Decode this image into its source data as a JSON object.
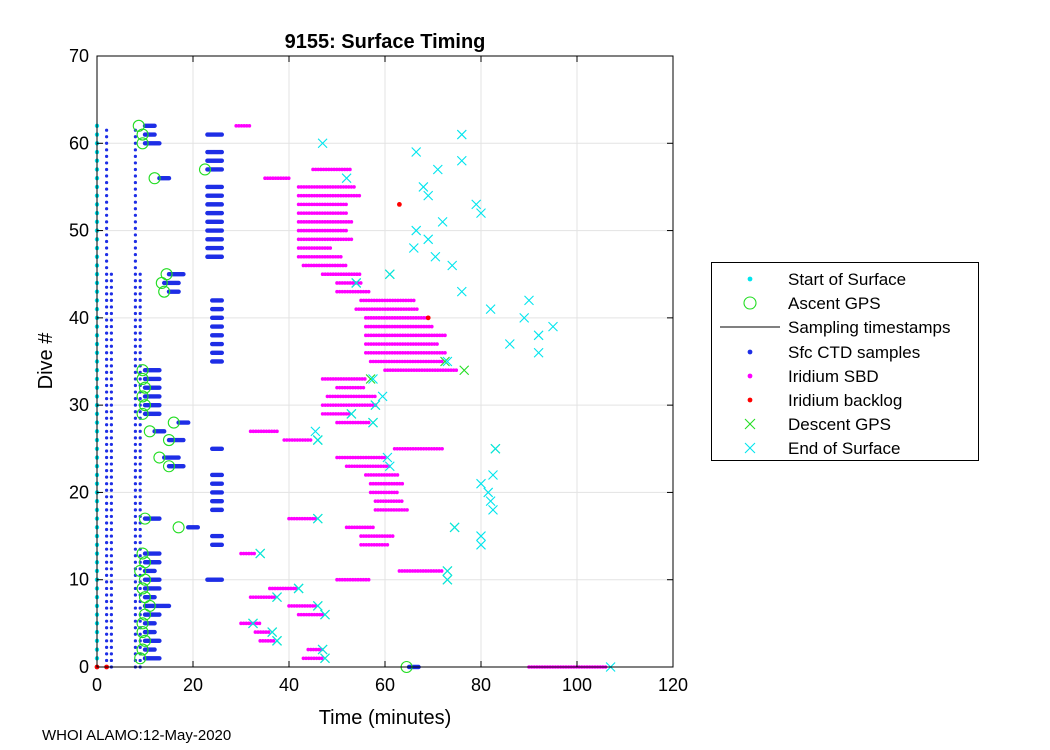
{
  "chart_data": {
    "type": "scatter",
    "title": "9155: Surface Timing",
    "xlabel": "Time (minutes)",
    "ylabel": "Dive #",
    "xlim": [
      0,
      120
    ],
    "ylim": [
      0,
      70
    ],
    "xticks": [
      0,
      20,
      40,
      60,
      80,
      100,
      120
    ],
    "yticks": [
      0,
      10,
      20,
      30,
      40,
      50,
      60,
      70
    ],
    "grid": true,
    "legend_position": "right-outside",
    "series": [
      {
        "name": "Start of Surface",
        "marker": "dot",
        "color": "#00e5ee",
        "points": [
          [
            0,
            0
          ],
          [
            0,
            1
          ],
          [
            0,
            2
          ],
          [
            0,
            3
          ],
          [
            0,
            4
          ],
          [
            0,
            5
          ],
          [
            0,
            6
          ],
          [
            0,
            7
          ],
          [
            0,
            8
          ],
          [
            0,
            9
          ],
          [
            0,
            10
          ],
          [
            0,
            11
          ],
          [
            0,
            12
          ],
          [
            0,
            13
          ],
          [
            0,
            14
          ],
          [
            0,
            15
          ],
          [
            0,
            16
          ],
          [
            0,
            17
          ],
          [
            0,
            18
          ],
          [
            0,
            19
          ],
          [
            0,
            20
          ],
          [
            0,
            21
          ],
          [
            0,
            22
          ],
          [
            0,
            23
          ],
          [
            0,
            24
          ],
          [
            0,
            25
          ],
          [
            0,
            26
          ],
          [
            0,
            27
          ],
          [
            0,
            28
          ],
          [
            0,
            29
          ],
          [
            0,
            30
          ],
          [
            0,
            31
          ],
          [
            0,
            32
          ],
          [
            0,
            33
          ],
          [
            0,
            34
          ],
          [
            0,
            35
          ],
          [
            0,
            36
          ],
          [
            0,
            37
          ],
          [
            0,
            38
          ],
          [
            0,
            39
          ],
          [
            0,
            40
          ],
          [
            0,
            41
          ],
          [
            0,
            42
          ],
          [
            0,
            43
          ],
          [
            0,
            44
          ],
          [
            0,
            45
          ],
          [
            0,
            46
          ],
          [
            0,
            47
          ],
          [
            0,
            48
          ],
          [
            0,
            49
          ],
          [
            0,
            50
          ],
          [
            0,
            51
          ],
          [
            0,
            52
          ],
          [
            0,
            53
          ],
          [
            0,
            54
          ],
          [
            0,
            55
          ],
          [
            0,
            56
          ],
          [
            0,
            57
          ],
          [
            0,
            58
          ],
          [
            0,
            59
          ],
          [
            0,
            60
          ],
          [
            0,
            61
          ],
          [
            0,
            62
          ]
        ]
      },
      {
        "name": "Ascent GPS",
        "marker": "circle",
        "color": "#22dd22",
        "points": [
          [
            9,
            1
          ],
          [
            9.5,
            2
          ],
          [
            10,
            3
          ],
          [
            9.5,
            4
          ],
          [
            9.5,
            5
          ],
          [
            10,
            6
          ],
          [
            11,
            7
          ],
          [
            10,
            8
          ],
          [
            9.5,
            9
          ],
          [
            10,
            10
          ],
          [
            9,
            11
          ],
          [
            10,
            12
          ],
          [
            9.5,
            13
          ],
          [
            17,
            16
          ],
          [
            10,
            17
          ],
          [
            15,
            23
          ],
          [
            13,
            24
          ],
          [
            15,
            26
          ],
          [
            11,
            27
          ],
          [
            16,
            28
          ],
          [
            9.5,
            29
          ],
          [
            10,
            30
          ],
          [
            9.5,
            31
          ],
          [
            10,
            32
          ],
          [
            9.5,
            33
          ],
          [
            9.5,
            34
          ],
          [
            14,
            43
          ],
          [
            13.5,
            44
          ],
          [
            14.5,
            45
          ],
          [
            12,
            56
          ],
          [
            22.5,
            57
          ],
          [
            9.5,
            60
          ],
          [
            9.5,
            61
          ],
          [
            8.7,
            62
          ],
          [
            64.5,
            0
          ]
        ]
      },
      {
        "name": "Sampling timestamps",
        "marker": "line",
        "color": "#000000",
        "points": []
      },
      {
        "name": "Sfc CTD samples",
        "marker": "dot",
        "color": "#1e2ee6",
        "points": []
      },
      {
        "name": "Iridium SBD",
        "marker": "dot",
        "color": "#ff00ff",
        "points": []
      },
      {
        "name": "Iridium backlog",
        "marker": "dot",
        "color": "#ff0000",
        "points": [
          [
            0,
            0
          ],
          [
            2,
            0
          ],
          [
            63,
            53
          ],
          [
            69,
            40
          ]
        ]
      },
      {
        "name": "Descent GPS",
        "marker": "x",
        "color": "#22dd22",
        "points": [
          [
            47.5,
            1
          ],
          [
            47,
            2
          ],
          [
            37.5,
            3
          ],
          [
            36.5,
            4
          ],
          [
            32.5,
            5
          ],
          [
            47.5,
            6
          ],
          [
            46,
            7
          ],
          [
            37.5,
            8
          ],
          [
            42,
            9
          ],
          [
            73,
            10
          ],
          [
            73,
            11
          ],
          [
            34,
            13
          ],
          [
            74.5,
            16
          ],
          [
            46,
            17
          ],
          [
            83,
            25
          ],
          [
            46,
            26
          ],
          [
            57.5,
            28
          ],
          [
            53,
            29
          ],
          [
            58,
            30
          ],
          [
            57,
            33
          ],
          [
            72.5,
            35
          ],
          [
            76.5,
            34
          ],
          [
            61,
            45
          ],
          [
            54,
            44
          ]
        ]
      },
      {
        "name": "End of Surface",
        "marker": "x",
        "color": "#00e5ee",
        "points": [
          [
            47.5,
            1
          ],
          [
            47,
            2
          ],
          [
            37.5,
            3
          ],
          [
            36.5,
            4
          ],
          [
            32.5,
            5
          ],
          [
            47.5,
            6
          ],
          [
            46,
            7
          ],
          [
            37.5,
            8
          ],
          [
            42,
            9
          ],
          [
            73,
            10
          ],
          [
            73,
            11
          ],
          [
            34,
            13
          ],
          [
            80,
            14
          ],
          [
            80,
            15
          ],
          [
            74.5,
            16
          ],
          [
            46,
            17
          ],
          [
            82.5,
            18
          ],
          [
            82,
            19
          ],
          [
            81.5,
            20
          ],
          [
            80,
            21
          ],
          [
            82.5,
            22
          ],
          [
            61,
            23
          ],
          [
            60.5,
            24
          ],
          [
            83,
            25
          ],
          [
            46,
            26
          ],
          [
            45.5,
            27
          ],
          [
            57.5,
            28
          ],
          [
            53,
            29
          ],
          [
            58,
            30
          ],
          [
            59.5,
            31
          ],
          [
            57.5,
            33
          ],
          [
            73,
            35
          ],
          [
            92,
            36
          ],
          [
            86,
            37
          ],
          [
            92,
            38
          ],
          [
            95,
            39
          ],
          [
            89,
            40
          ],
          [
            82,
            41
          ],
          [
            90,
            42
          ],
          [
            76,
            43
          ],
          [
            54,
            44
          ],
          [
            61,
            45
          ],
          [
            74,
            46
          ],
          [
            70.5,
            47
          ],
          [
            66,
            48
          ],
          [
            69,
            49
          ],
          [
            66.5,
            50
          ],
          [
            72,
            51
          ],
          [
            80,
            52
          ],
          [
            79,
            53
          ],
          [
            69,
            54
          ],
          [
            68,
            55
          ],
          [
            52,
            56
          ],
          [
            71,
            57
          ],
          [
            76,
            58
          ],
          [
            66.5,
            59
          ],
          [
            47,
            60
          ],
          [
            76,
            61
          ],
          [
            107,
            0
          ]
        ]
      }
    ],
    "sampling_columns_x": [
      2,
      3,
      8,
      9
    ],
    "notes": "Dense scatter of per-dive surface sample clusters; values estimated from gridlines."
  },
  "legend": {
    "items": [
      {
        "label": "Start of Surface"
      },
      {
        "label": "Ascent GPS"
      },
      {
        "label": "Sampling timestamps"
      },
      {
        "label": "Sfc CTD samples"
      },
      {
        "label": "Iridium SBD"
      },
      {
        "label": "Iridium backlog"
      },
      {
        "label": "Descent GPS"
      },
      {
        "label": "End of Surface"
      }
    ]
  },
  "footer": "WHOI ALAMO:12-May-2020",
  "colors": {
    "cyan": "#00e5ee",
    "green": "#22dd22",
    "blue": "#1e2ee6",
    "magenta": "#ff00ff",
    "red": "#ff0000",
    "grid": "#e3e3e3"
  },
  "ranges": {
    "ctd": [
      [
        10,
        13,
        1
      ],
      [
        10,
        12,
        2
      ],
      [
        10,
        13,
        3
      ],
      [
        10,
        12,
        4
      ],
      [
        10,
        12,
        5
      ],
      [
        10,
        13,
        6
      ],
      [
        10,
        15,
        7
      ],
      [
        10,
        12,
        8
      ],
      [
        10,
        13,
        9
      ],
      [
        10,
        13,
        10
      ],
      [
        10,
        12,
        11
      ],
      [
        10,
        13,
        12
      ],
      [
        10,
        13,
        13
      ],
      [
        19,
        21,
        16
      ],
      [
        10,
        13,
        17
      ],
      [
        15,
        18,
        23
      ],
      [
        14,
        17,
        24
      ],
      [
        15,
        18,
        26
      ],
      [
        12,
        14,
        27
      ],
      [
        17,
        19,
        28
      ],
      [
        10,
        13,
        29
      ],
      [
        10,
        13,
        30
      ],
      [
        10,
        13,
        31
      ],
      [
        10,
        13,
        32
      ],
      [
        10,
        13,
        33
      ],
      [
        10,
        13,
        34
      ],
      [
        15,
        17,
        43
      ],
      [
        14,
        17,
        44
      ],
      [
        15,
        18,
        45
      ],
      [
        13,
        15,
        56
      ],
      [
        23,
        26,
        57
      ],
      [
        10,
        13,
        60
      ],
      [
        10,
        12,
        61
      ],
      [
        10,
        12,
        62
      ],
      [
        65,
        67,
        0
      ],
      [
        23,
        26,
        10
      ],
      [
        24,
        26,
        14
      ],
      [
        24,
        26,
        15
      ],
      [
        24,
        26,
        18
      ],
      [
        24,
        26,
        19
      ],
      [
        24,
        26,
        20
      ],
      [
        24,
        26,
        21
      ],
      [
        24,
        26,
        22
      ],
      [
        24,
        26,
        25
      ],
      [
        24,
        26,
        35
      ],
      [
        24,
        26,
        36
      ],
      [
        24,
        26,
        37
      ],
      [
        24,
        26,
        38
      ],
      [
        24,
        26,
        39
      ],
      [
        24,
        26,
        40
      ],
      [
        24,
        26,
        41
      ],
      [
        24,
        26,
        42
      ],
      [
        23,
        26,
        47
      ],
      [
        23,
        26,
        48
      ],
      [
        23,
        26,
        49
      ],
      [
        23,
        26,
        50
      ],
      [
        23,
        26,
        51
      ],
      [
        23,
        26,
        52
      ],
      [
        23,
        26,
        53
      ],
      [
        23,
        26,
        54
      ],
      [
        23,
        26,
        55
      ],
      [
        23,
        26,
        58
      ],
      [
        23,
        26,
        59
      ],
      [
        23,
        26,
        61
      ]
    ],
    "sbd": [
      [
        43,
        47,
        1
      ],
      [
        44,
        47,
        2
      ],
      [
        34,
        37,
        3
      ],
      [
        33,
        36,
        4
      ],
      [
        30,
        34,
        5
      ],
      [
        42,
        47,
        6
      ],
      [
        40,
        46,
        7
      ],
      [
        32,
        37,
        8
      ],
      [
        36,
        42,
        9
      ],
      [
        50,
        57,
        10
      ],
      [
        63,
        72,
        11
      ],
      [
        30,
        33,
        13
      ],
      [
        52,
        58,
        16
      ],
      [
        40,
        46,
        17
      ],
      [
        55,
        61,
        14
      ],
      [
        55,
        62,
        15
      ],
      [
        58,
        65,
        18
      ],
      [
        58,
        64,
        19
      ],
      [
        57,
        63,
        20
      ],
      [
        57,
        64,
        21
      ],
      [
        56,
        63,
        22
      ],
      [
        52,
        61,
        23
      ],
      [
        50,
        60,
        24
      ],
      [
        62,
        72,
        25
      ],
      [
        39,
        45,
        26
      ],
      [
        32,
        38,
        27
      ],
      [
        50,
        57,
        28
      ],
      [
        47,
        53,
        29
      ],
      [
        47,
        58,
        30
      ],
      [
        48,
        58,
        31
      ],
      [
        50,
        56,
        32
      ],
      [
        47,
        56,
        33
      ],
      [
        60,
        75,
        34
      ],
      [
        57,
        72,
        35
      ],
      [
        56,
        73,
        36
      ],
      [
        56,
        71,
        37
      ],
      [
        56,
        73,
        38
      ],
      [
        56,
        70,
        39
      ],
      [
        56,
        69,
        40
      ],
      [
        54,
        67,
        41
      ],
      [
        55,
        66,
        42
      ],
      [
        50,
        57,
        43
      ],
      [
        50,
        55,
        44
      ],
      [
        47,
        55,
        45
      ],
      [
        43,
        52,
        46
      ],
      [
        42,
        51,
        47
      ],
      [
        42,
        49,
        48
      ],
      [
        42,
        53,
        49
      ],
      [
        42,
        52,
        50
      ],
      [
        42,
        53,
        51
      ],
      [
        42,
        52,
        52
      ],
      [
        42,
        52,
        53
      ],
      [
        42,
        55,
        54
      ],
      [
        42,
        54,
        55
      ],
      [
        35,
        40,
        56
      ],
      [
        45,
        53,
        57
      ],
      [
        29,
        32,
        62
      ],
      [
        90,
        106,
        0
      ]
    ]
  }
}
